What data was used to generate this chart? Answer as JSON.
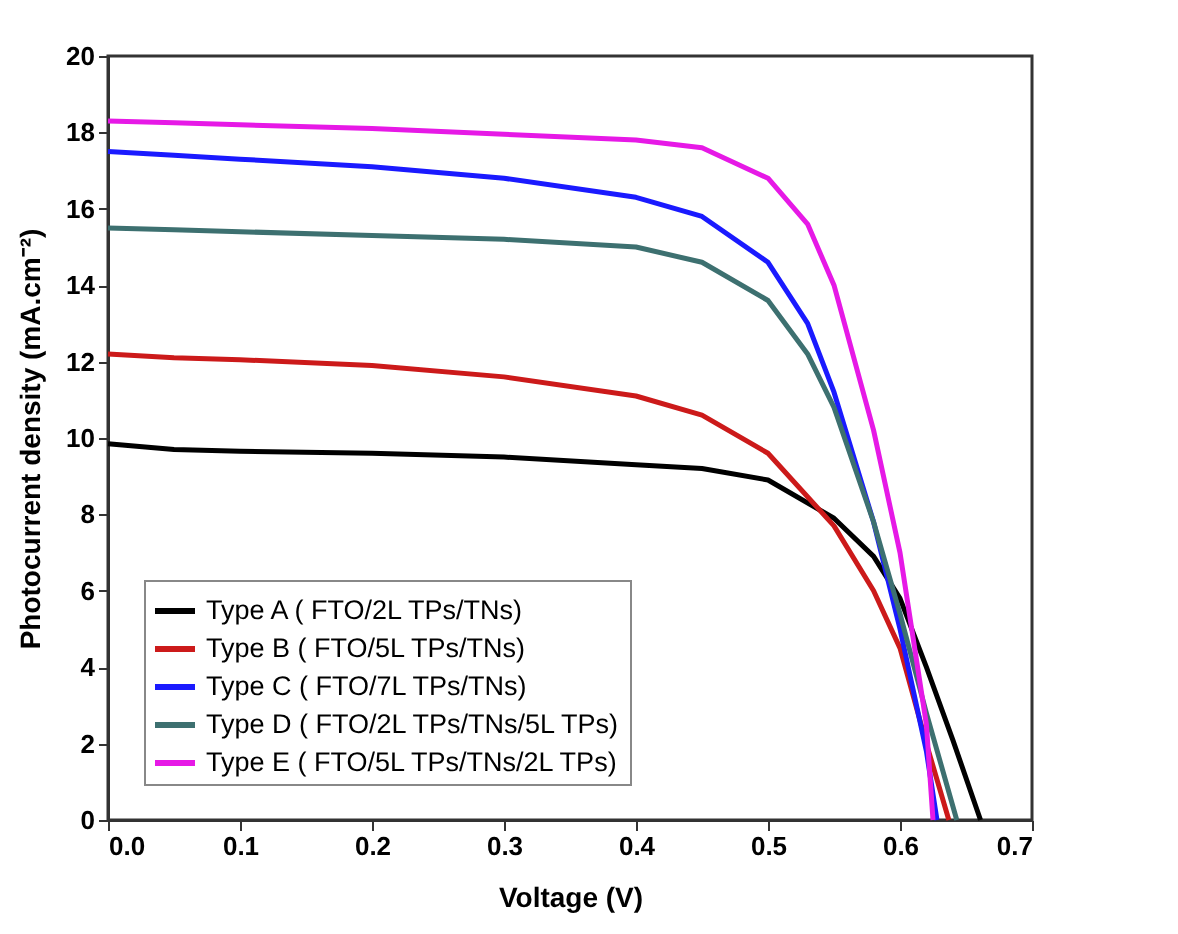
{
  "chart_data": {
    "type": "line",
    "xlabel": "Voltage (V)",
    "ylabel": "Photocurrent density (mA.cm⁻²)",
    "xlim": [
      0,
      0.7
    ],
    "xticks": [
      {
        "value": 0,
        "label": "0.0"
      },
      0.1,
      0.2,
      0.3,
      0.4,
      0.5,
      0.6,
      0.7
    ],
    "ylim": [
      0,
      20
    ],
    "yticks": [
      0,
      2,
      4,
      6,
      8,
      10,
      12,
      14,
      16,
      18,
      20
    ],
    "grid": false,
    "legend": "bottom left",
    "marker": "none",
    "line_style": "solid",
    "series": [
      {
        "name": "Type A ( FTO/2L TPs/TNs)",
        "color": "#000000",
        "x": [
          0,
          0.05,
          0.1,
          0.2,
          0.3,
          0.4,
          0.45,
          0.5,
          0.55,
          0.58,
          0.6,
          0.62,
          0.64,
          0.661
        ],
        "values": [
          9.85,
          9.7,
          9.65,
          9.6,
          9.5,
          9.3,
          9.2,
          8.9,
          7.9,
          6.9,
          5.8,
          4.0,
          2.1,
          0
        ]
      },
      {
        "name": "Type B ( FTO/5L TPs/TNs)",
        "color": "#cc1a1a",
        "x": [
          0,
          0.05,
          0.1,
          0.2,
          0.3,
          0.4,
          0.45,
          0.5,
          0.55,
          0.58,
          0.6,
          0.62,
          0.637
        ],
        "values": [
          12.2,
          12.1,
          12.05,
          11.9,
          11.6,
          11.1,
          10.6,
          9.6,
          7.7,
          6.0,
          4.5,
          2.0,
          0
        ]
      },
      {
        "name": "Type C ( FTO/7L TPs/TNs)",
        "color": "#1a1aff",
        "x": [
          0,
          0.05,
          0.1,
          0.2,
          0.3,
          0.4,
          0.45,
          0.5,
          0.53,
          0.55,
          0.58,
          0.6,
          0.62,
          0.628
        ],
        "values": [
          17.5,
          17.4,
          17.3,
          17.1,
          16.8,
          16.3,
          15.8,
          14.6,
          13.0,
          11.2,
          7.8,
          5.0,
          1.8,
          0
        ]
      },
      {
        "name": "Type D ( FTO/2L TPs/TNs/5L TPs)",
        "color": "#3d7070",
        "x": [
          0,
          0.05,
          0.1,
          0.2,
          0.3,
          0.4,
          0.45,
          0.5,
          0.53,
          0.55,
          0.58,
          0.6,
          0.62,
          0.643
        ],
        "values": [
          15.5,
          15.45,
          15.4,
          15.3,
          15.2,
          15.0,
          14.6,
          13.6,
          12.2,
          10.8,
          7.8,
          5.4,
          2.8,
          0
        ]
      },
      {
        "name": "Type E ( FTO/5L TPs/TNs/2L TPs)",
        "color": "#e619e6",
        "x": [
          0,
          0.05,
          0.1,
          0.2,
          0.3,
          0.4,
          0.45,
          0.5,
          0.53,
          0.55,
          0.58,
          0.6,
          0.62,
          0.625
        ],
        "values": [
          18.3,
          18.25,
          18.2,
          18.1,
          17.95,
          17.8,
          17.6,
          16.8,
          15.6,
          14.0,
          10.2,
          7.0,
          2.5,
          0
        ]
      }
    ]
  }
}
